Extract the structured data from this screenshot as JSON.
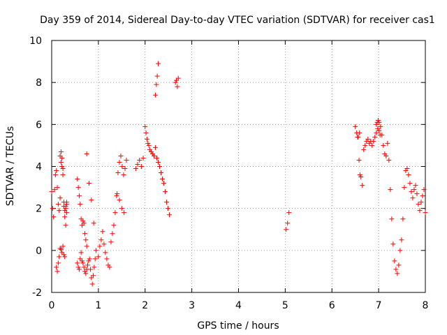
{
  "chart_data": {
    "type": "scatter",
    "title": "Day 359 of 2014, Sidereal Day-to-day VTEC variation (SDTVAR) for receiver cas1",
    "xlabel": "GPS time / hours",
    "ylabel": "SDTVAR / TECUs",
    "xlim": [
      0,
      8
    ],
    "ylim": [
      -2,
      10
    ],
    "xticks": [
      0,
      1,
      2,
      3,
      4,
      5,
      6,
      7,
      8
    ],
    "yticks": [
      -2,
      0,
      2,
      4,
      6,
      8,
      10
    ],
    "grid": true,
    "marker": "+",
    "colors": {
      "series": "#ff0000",
      "grid": "#a0a0a0",
      "axis": "#000000"
    },
    "series": [
      {
        "name": "SDTVAR",
        "x": [
          0.0,
          0.02,
          0.04,
          0.06,
          0.08,
          0.1,
          0.12,
          0.14,
          0.16,
          0.18,
          0.2,
          0.22,
          0.24,
          0.26,
          0.28,
          0.3,
          0.32,
          0.1,
          0.12,
          0.14,
          0.16,
          0.18,
          0.2,
          0.22,
          0.24,
          0.26,
          0.28,
          0.3,
          0.32,
          0.18,
          0.2,
          0.22,
          0.24,
          0.26,
          0.28,
          0.3,
          0.32,
          0.55,
          0.57,
          0.59,
          0.61,
          0.63,
          0.65,
          0.67,
          0.69,
          0.71,
          0.73,
          0.75,
          0.55,
          0.57,
          0.59,
          0.61,
          0.63,
          0.65,
          0.67,
          0.69,
          0.71,
          0.73,
          0.75,
          0.77,
          0.79,
          0.81,
          0.83,
          0.85,
          0.87,
          0.89,
          0.91,
          0.93,
          0.95,
          0.75,
          0.8,
          0.85,
          0.9,
          1.0,
          1.03,
          1.06,
          1.09,
          1.12,
          1.15,
          1.18,
          1.21,
          1.24,
          1.27,
          1.3,
          1.33,
          1.36,
          1.39,
          1.42,
          1.45,
          1.48,
          1.51,
          1.54,
          1.57,
          1.6,
          1.4,
          1.45,
          1.5,
          1.55,
          1.8,
          1.84,
          1.88,
          1.92,
          1.96,
          2.0,
          2.02,
          2.04,
          2.06,
          2.08,
          2.1,
          2.13,
          2.16,
          2.19,
          2.22,
          2.25,
          2.28,
          2.31,
          2.34,
          2.37,
          2.4,
          2.43,
          2.46,
          2.49,
          2.52,
          2.22,
          2.24,
          2.26,
          2.28,
          2.65,
          2.67,
          2.69,
          2.71,
          5.02,
          5.05,
          5.08,
          6.5,
          6.53,
          6.56,
          6.59,
          6.62,
          6.65,
          6.68,
          6.71,
          6.74,
          6.77,
          6.8,
          6.83,
          6.86,
          6.89,
          6.92,
          6.95,
          6.98,
          7.01,
          7.04,
          7.07,
          7.1,
          7.13,
          7.16,
          7.19,
          7.22,
          7.25,
          7.28,
          7.31,
          7.34,
          7.37,
          7.4,
          7.43,
          7.46,
          7.49,
          7.52,
          7.55,
          7.58,
          7.61,
          7.64,
          7.67,
          7.7,
          7.73,
          7.76,
          7.79,
          7.82,
          7.85,
          7.88,
          7.91,
          7.94,
          7.97,
          8.0,
          6.55,
          6.58,
          6.6,
          6.95,
          6.97,
          6.99,
          7.01,
          7.03
        ],
        "y": [
          2.8,
          2.0,
          1.6,
          2.9,
          3.6,
          3.8,
          3.0,
          2.2,
          1.9,
          2.5,
          4.7,
          4.4,
          3.9,
          2.1,
          1.6,
          2.0,
          2.2,
          -0.8,
          -1.0,
          -0.6,
          -0.3,
          0.1,
          0.05,
          -0.1,
          0.2,
          -0.2,
          -0.3,
          2.1,
          1.8,
          4.5,
          4.2,
          4.0,
          3.6,
          2.3,
          1.9,
          1.2,
          2.3,
          3.4,
          3.0,
          2.6,
          2.2,
          1.5,
          1.2,
          1.4,
          1.3,
          0.8,
          0.5,
          0.2,
          -0.6,
          -0.8,
          -0.9,
          -0.4,
          -0.1,
          -0.5,
          -0.6,
          -0.8,
          -1.0,
          -1.1,
          -0.9,
          -0.7,
          -0.5,
          -0.4,
          -0.9,
          -1.3,
          -1.6,
          -1.2,
          -0.8,
          -0.4,
          0.0,
          4.6,
          3.2,
          2.4,
          1.3,
          -0.3,
          0.2,
          0.5,
          0.9,
          0.3,
          -0.1,
          -0.4,
          -0.7,
          -0.8,
          0.4,
          0.8,
          1.2,
          1.8,
          2.6,
          3.7,
          4.2,
          4.5,
          4.0,
          3.6,
          3.9,
          4.3,
          2.7,
          2.4,
          2.0,
          1.8,
          3.9,
          4.1,
          4.3,
          4.0,
          4.4,
          5.9,
          5.6,
          5.3,
          5.1,
          5.0,
          4.8,
          4.7,
          4.6,
          4.5,
          4.9,
          4.4,
          4.2,
          4.0,
          3.7,
          3.4,
          3.2,
          2.8,
          2.3,
          2.0,
          1.7,
          7.4,
          7.9,
          8.3,
          8.9,
          8.0,
          8.1,
          7.8,
          8.2,
          1.0,
          1.3,
          1.8,
          5.9,
          5.6,
          5.4,
          5.6,
          3.5,
          3.1,
          4.8,
          5.0,
          5.2,
          5.3,
          5.1,
          5.2,
          5.0,
          5.2,
          5.4,
          5.6,
          5.8,
          6.1,
          5.9,
          5.5,
          5.0,
          4.6,
          4.5,
          5.1,
          4.3,
          2.9,
          1.5,
          0.3,
          -0.5,
          -0.9,
          -1.1,
          -0.7,
          0.0,
          0.5,
          1.5,
          3.0,
          3.8,
          3.9,
          3.6,
          3.2,
          2.8,
          2.5,
          2.9,
          3.1,
          2.7,
          2.2,
          1.9,
          2.3,
          2.6,
          2.9,
          1.8,
          5.4,
          4.3,
          3.6,
          6.0,
          6.1,
          6.2,
          5.7,
          5.5
        ]
      }
    ]
  }
}
